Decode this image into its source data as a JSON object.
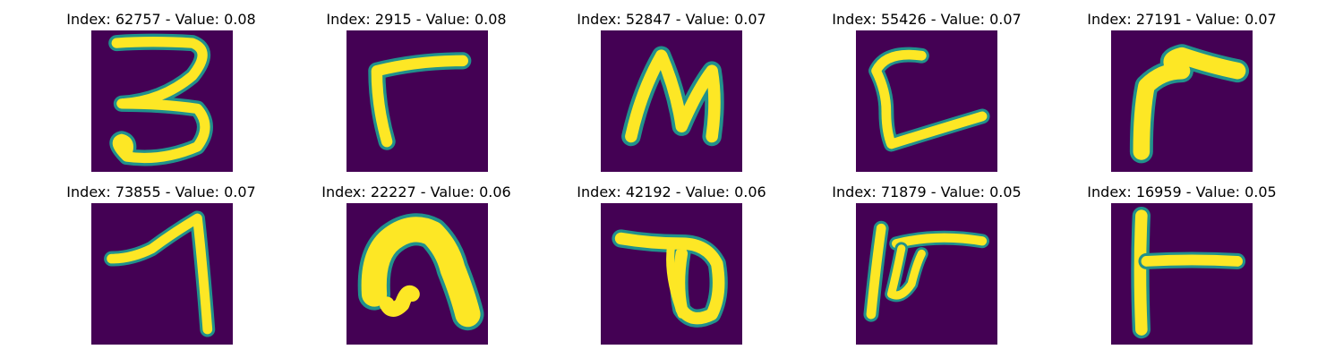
{
  "colors": {
    "background": "#440154",
    "edge_dark": "#31688e",
    "edge_mid": "#21918c",
    "edge_light": "#5ec962",
    "foreground": "#fde725"
  },
  "panels": [
    {
      "title": "Index: 62757 - Value: 0.08",
      "glyph": "3"
    },
    {
      "title": "Index: 2915 - Value: 0.08",
      "glyph": "corner-L"
    },
    {
      "title": "Index: 52847 - Value: 0.07",
      "glyph": "N"
    },
    {
      "title": "Index: 55426 - Value: 0.07",
      "glyph": "C-L"
    },
    {
      "title": "Index: 27191 - Value: 0.07",
      "glyph": "bold-corner"
    },
    {
      "title": "Index: 73855 - Value: 0.07",
      "glyph": "7-hook"
    },
    {
      "title": "Index: 22227 - Value: 0.06",
      "glyph": "arch"
    },
    {
      "title": "Index: 42192 - Value: 0.06",
      "glyph": "loop-T"
    },
    {
      "title": "Index: 71879 - Value: 0.05",
      "glyph": "pi"
    },
    {
      "title": "Index: 16959 - Value: 0.05",
      "glyph": "T-side"
    }
  ]
}
